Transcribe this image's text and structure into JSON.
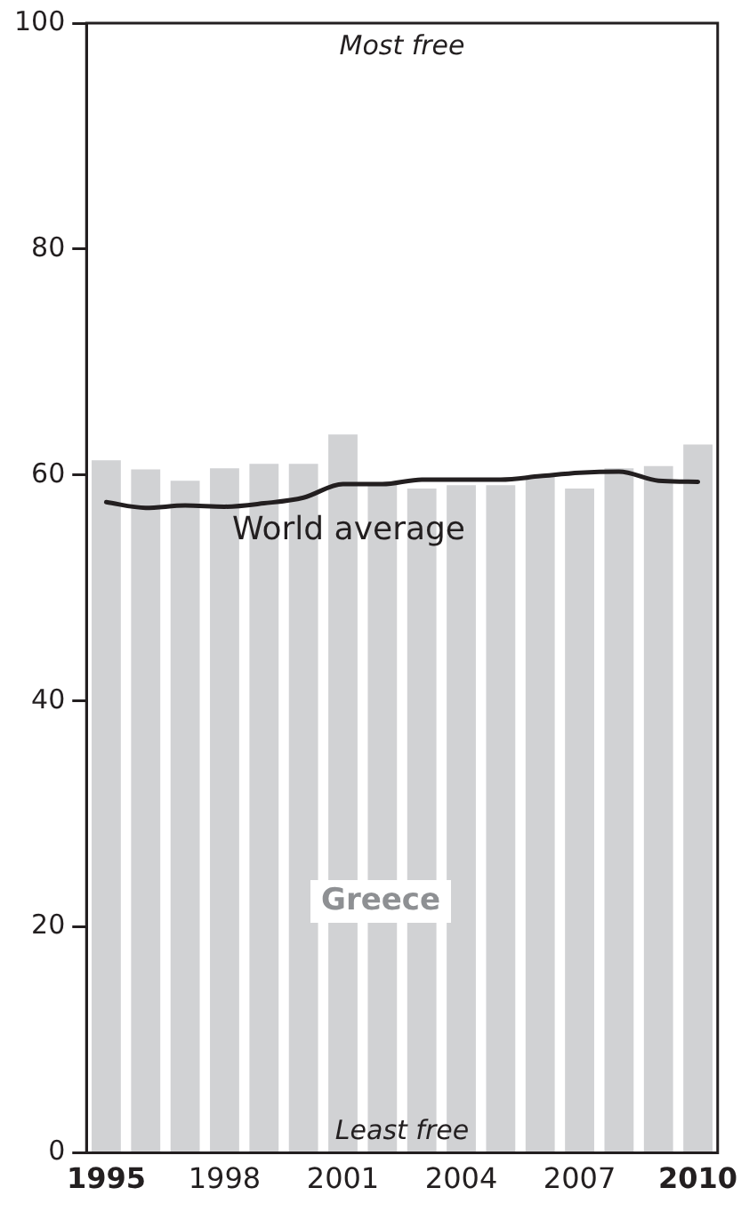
{
  "chart_data": {
    "type": "bar",
    "categories": [
      "1995",
      null,
      null,
      "1998",
      null,
      null,
      "2001",
      null,
      null,
      "2004",
      null,
      null,
      "2007",
      null,
      null,
      "2010"
    ],
    "series": [
      {
        "name": "Greece",
        "color": "#d1d2d4",
        "values": [
          61.3,
          60.5,
          59.5,
          60.6,
          61.0,
          61.0,
          63.6,
          59.2,
          58.8,
          59.1,
          59.1,
          60.0,
          58.8,
          60.6,
          60.8,
          62.7
        ]
      },
      {
        "name": "World average",
        "type": "line",
        "color": "#231f20",
        "values": [
          57.6,
          57.1,
          57.3,
          57.2,
          57.5,
          58.0,
          59.2,
          59.2,
          59.6,
          59.6,
          59.6,
          59.9,
          60.2,
          60.3,
          59.5,
          59.4
        ]
      }
    ],
    "ylim": [
      0,
      100
    ],
    "yticks": [
      0,
      20,
      40,
      60,
      80,
      100
    ],
    "grid": false,
    "legend": false,
    "marker": "none",
    "line_style": "solid",
    "annotations": [
      "Most free",
      "Least free"
    ]
  }
}
